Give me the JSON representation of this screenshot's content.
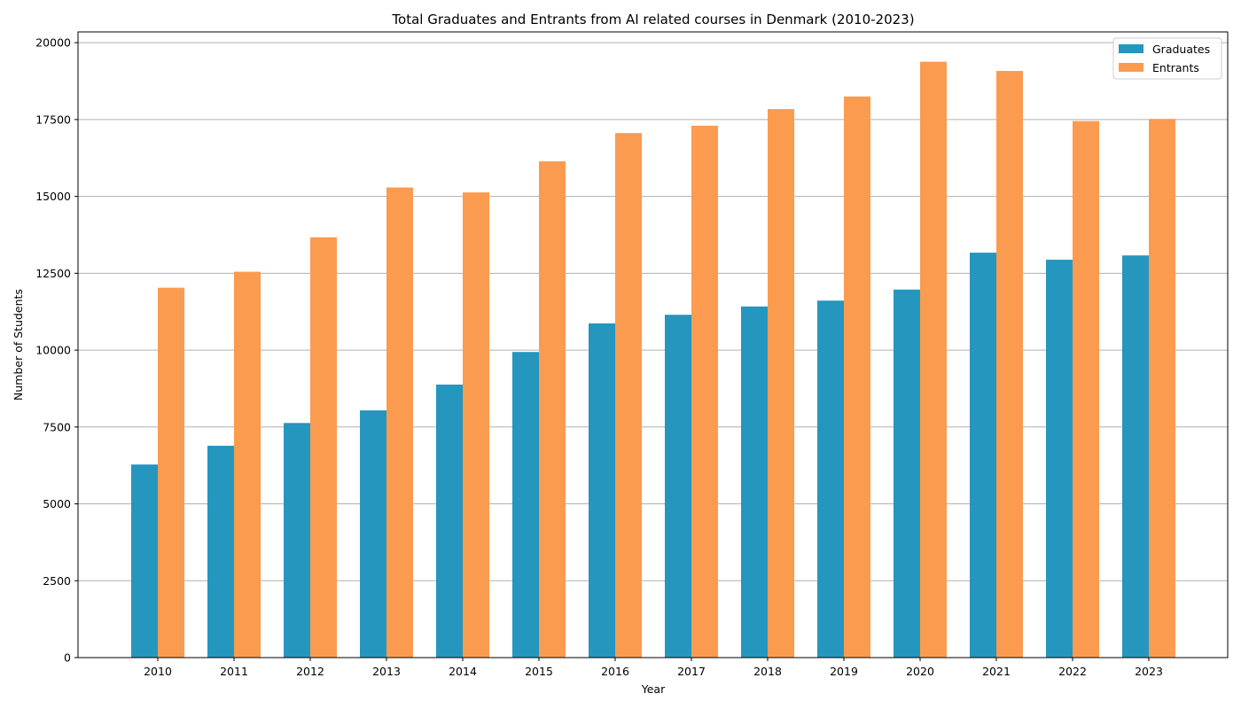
{
  "chart_data": {
    "type": "bar",
    "title": "Total Graduates and Entrants from AI related courses in Denmark (2010-2023)",
    "xlabel": "Year",
    "ylabel": "Number of Students",
    "categories": [
      "2010",
      "2011",
      "2012",
      "2013",
      "2014",
      "2015",
      "2016",
      "2017",
      "2018",
      "2019",
      "2020",
      "2021",
      "2022",
      "2023"
    ],
    "series": [
      {
        "name": "Graduates",
        "color": "#2596be",
        "values": [
          6280,
          6890,
          7630,
          8040,
          8880,
          9940,
          10870,
          11150,
          11420,
          11610,
          11970,
          13170,
          12940,
          13080
        ]
      },
      {
        "name": "Entrants",
        "color": "#fb9b50",
        "values": [
          12030,
          12550,
          13670,
          15290,
          15130,
          16140,
          17060,
          17300,
          17840,
          18250,
          19380,
          19080,
          17450,
          17520
        ]
      }
    ],
    "ylim": [
      0,
      20350
    ],
    "yticks": [
      0,
      2500,
      5000,
      7500,
      10000,
      12500,
      15000,
      17500,
      20000
    ],
    "grid": "y",
    "legend": "top-right"
  }
}
